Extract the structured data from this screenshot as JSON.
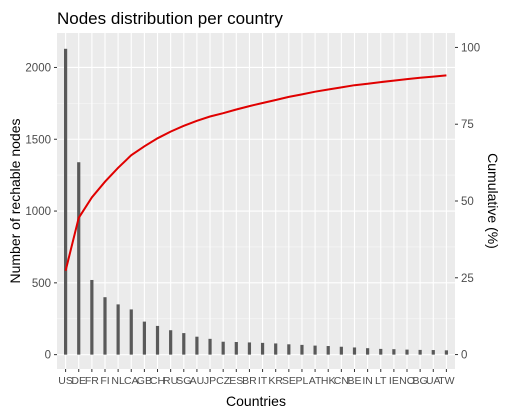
{
  "chart_data": {
    "type": "bar",
    "title": "Nodes distribution per country",
    "xlabel": "Countries",
    "ylabel": "Number of rechable nodes",
    "y2label": "Cumulative (%)",
    "categories": [
      "US",
      "DE",
      "FR",
      "FI",
      "NL",
      "CA",
      "GB",
      "CH",
      "RU",
      "SG",
      "AU",
      "JP",
      "CZ",
      "ES",
      "BR",
      "IT",
      "KR",
      "SE",
      "PL",
      "AT",
      "HK",
      "CN",
      "BE",
      "IN",
      "LT",
      "IE",
      "NO",
      "BG",
      "UA",
      "TW"
    ],
    "values": [
      2130,
      1340,
      520,
      400,
      350,
      315,
      230,
      200,
      170,
      150,
      125,
      110,
      90,
      88,
      85,
      82,
      78,
      72,
      68,
      63,
      60,
      55,
      50,
      45,
      40,
      38,
      35,
      33,
      32,
      30
    ],
    "cumulative": [
      27.3,
      44.5,
      51.2,
      56.3,
      60.8,
      64.9,
      67.8,
      70.4,
      72.6,
      74.5,
      76.1,
      77.5,
      78.6,
      79.8,
      80.9,
      81.9,
      82.9,
      83.9,
      84.7,
      85.6,
      86.3,
      87.0,
      87.7,
      88.2,
      88.7,
      89.2,
      89.7,
      90.1,
      90.5,
      90.9
    ],
    "ylim": [
      -100,
      2240
    ],
    "y_ticks": [
      0,
      500,
      1000,
      1500,
      2000
    ],
    "y2lim": [
      -4.7,
      104.7
    ],
    "y2_ticks": [
      0,
      25,
      50,
      75,
      100
    ],
    "grid": true,
    "bar_color": "#595959",
    "line_color": "#e00000",
    "panel_color": "#ebebeb"
  }
}
